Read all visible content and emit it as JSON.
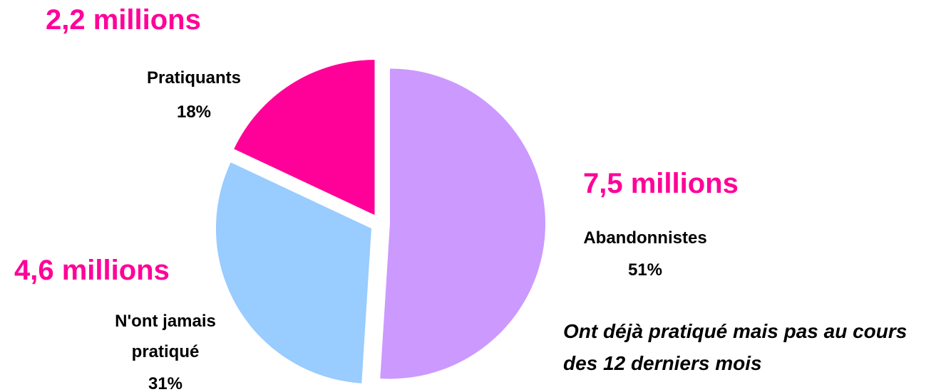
{
  "chart_data": {
    "type": "pie",
    "categories": [
      "Abandonnistes",
      "N'ont jamais pratiqué",
      "Pratiquants"
    ],
    "values": [
      51,
      31,
      18
    ],
    "value_labels": [
      "51%",
      "31%",
      "18%"
    ],
    "colors": [
      "#cc99ff",
      "#99ccff",
      "#ff0099"
    ],
    "annotations": [
      "7,5 millions",
      "4,6 millions",
      "2,2 millions",
      "Ont déjà pratiqué mais pas au cours des 12 derniers mois"
    ]
  }
}
